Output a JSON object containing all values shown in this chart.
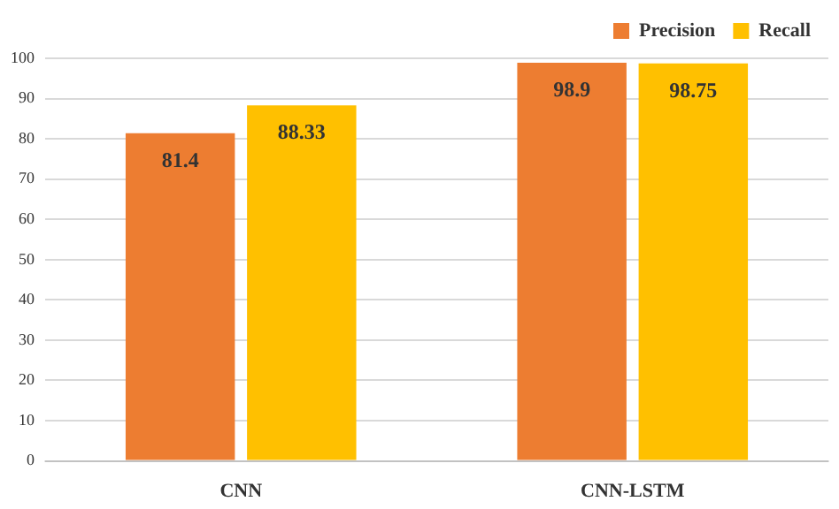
{
  "chart_data": {
    "type": "bar",
    "categories": [
      "CNN",
      "CNN-LSTM"
    ],
    "series": [
      {
        "name": "Precision",
        "color": "#ed7d31",
        "values": [
          81.4,
          98.9
        ]
      },
      {
        "name": "Recall",
        "color": "#ffc000",
        "values": [
          88.33,
          98.75
        ]
      }
    ],
    "ylim": [
      0,
      100
    ],
    "yticks": [
      0,
      10,
      20,
      30,
      40,
      50,
      60,
      70,
      80,
      90,
      100
    ],
    "grid": "y",
    "legend": "top right",
    "data_labels": true
  }
}
